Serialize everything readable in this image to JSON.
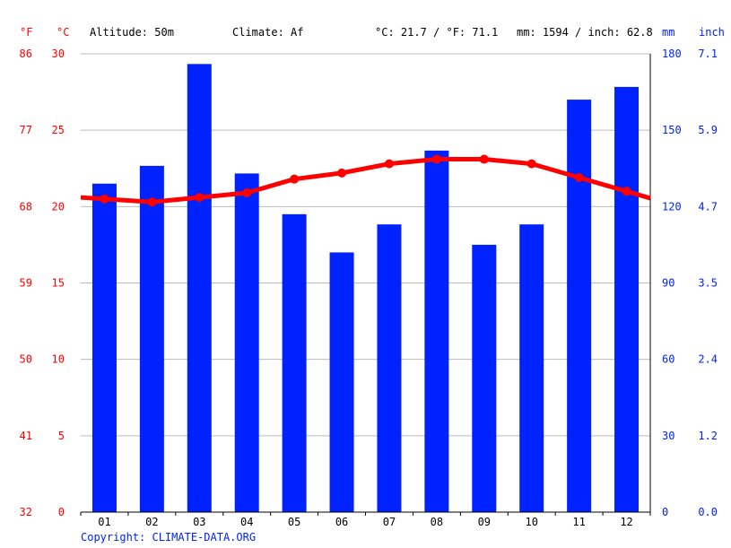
{
  "header": {
    "altitude": "Altitude: 50m",
    "climate": "Climate: Af",
    "temp_summary": "°C: 21.7 / °F: 71.1",
    "precip_summary": "mm: 1594 / inch: 62.8"
  },
  "units": {
    "fahrenheit": "°F",
    "celsius": "°C",
    "mm": "mm",
    "inch": "inch"
  },
  "copyright": "Copyright: CLIMATE-DATA.ORG",
  "colors": {
    "temperature": "#ff0000",
    "precipitation": "#0022ff",
    "grid": "#bbbbbb"
  },
  "chart_data": {
    "type": "bar+line",
    "categories": [
      "01",
      "02",
      "03",
      "04",
      "05",
      "06",
      "07",
      "08",
      "09",
      "10",
      "11",
      "12"
    ],
    "series": [
      {
        "name": "mm",
        "type": "bar",
        "axis": "right",
        "values": [
          129,
          136,
          176,
          133,
          117,
          102,
          113,
          142,
          105,
          113,
          162,
          167
        ]
      },
      {
        "name": "°C",
        "type": "line",
        "axis": "left",
        "values": [
          20.5,
          20.3,
          20.6,
          20.9,
          21.8,
          22.2,
          22.8,
          23.1,
          23.1,
          22.8,
          21.9,
          21.0
        ]
      }
    ],
    "y_left": {
      "label": "°C",
      "range": [
        0,
        30
      ],
      "ticks": [
        "0",
        "5",
        "10",
        "15",
        "20",
        "25",
        "30"
      ]
    },
    "y_left_secondary": {
      "label": "°F",
      "ticks": [
        "32",
        "41",
        "50",
        "59",
        "68",
        "77",
        "86"
      ]
    },
    "y_right": {
      "label": "mm",
      "range": [
        0,
        180
      ],
      "ticks": [
        "0",
        "30",
        "60",
        "90",
        "120",
        "150",
        "180"
      ]
    },
    "y_right_secondary": {
      "label": "inch",
      "ticks": [
        "0.0",
        "1.2",
        "2.4",
        "3.5",
        "4.7",
        "5.9",
        "7.1"
      ]
    },
    "grid": true
  }
}
